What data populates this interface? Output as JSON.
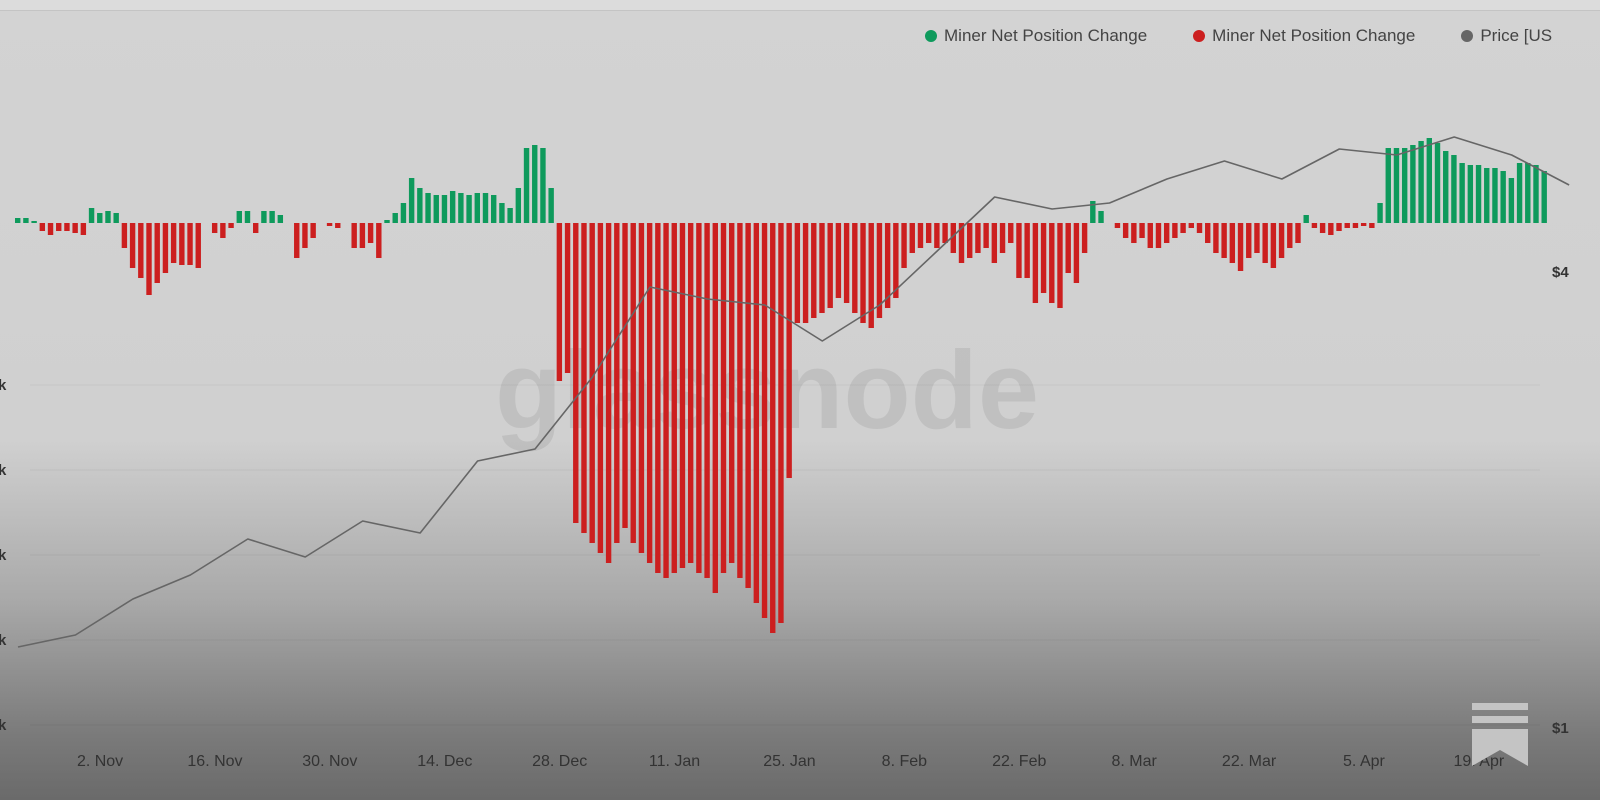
{
  "chart_data": {
    "type": "bar",
    "title": "",
    "watermark": "glassnode",
    "legend": {
      "placement": "top-right",
      "entries": [
        {
          "label": "Miner Net Position Change",
          "color": "#0e9a5c"
        },
        {
          "label": "Miner Net Position Change",
          "color": "#cc1f1f"
        },
        {
          "label": "Price [US",
          "color": "#666666"
        }
      ]
    },
    "x_ticks": [
      "2. Nov",
      "16. Nov",
      "30. Nov",
      "14. Dec",
      "28. Dec",
      "11. Jan",
      "25. Jan",
      "8. Feb",
      "22. Feb",
      "8. Mar",
      "22. Mar",
      "5. Apr",
      "19. Apr"
    ],
    "left_axis_ticks": [
      "k",
      "k",
      "k",
      "k",
      "k"
    ],
    "right_axis_ticks": [
      "$4",
      "$1"
    ],
    "grid": true,
    "bar_ylim": [
      -420,
      100
    ],
    "series": [
      {
        "kind": "bars",
        "positive_color": "#0e9a5c",
        "negative_color": "#cc1f1f",
        "values": [
          5,
          5,
          2,
          -8,
          -12,
          -8,
          -8,
          -10,
          -12,
          15,
          10,
          12,
          10,
          -25,
          -45,
          -55,
          -72,
          -60,
          -50,
          -40,
          -42,
          -42,
          -45,
          0,
          -10,
          -15,
          -5,
          12,
          12,
          -10,
          12,
          12,
          8,
          0,
          -35,
          -25,
          -15,
          0,
          -3,
          -5,
          0,
          -25,
          -25,
          -20,
          -35,
          3,
          10,
          20,
          45,
          35,
          30,
          28,
          28,
          32,
          30,
          28,
          30,
          30,
          28,
          20,
          15,
          35,
          75,
          78,
          75,
          35,
          -158,
          -150,
          -300,
          -310,
          -320,
          -330,
          -340,
          -320,
          -305,
          -320,
          -330,
          -340,
          -350,
          -355,
          -350,
          -345,
          -340,
          -350,
          -355,
          -370,
          -350,
          -340,
          -355,
          -365,
          -380,
          -395,
          -410,
          -400,
          -255,
          -100,
          -100,
          -95,
          -90,
          -85,
          -75,
          -80,
          -90,
          -100,
          -105,
          -95,
          -85,
          -75,
          -45,
          -30,
          -25,
          -20,
          -25,
          -20,
          -30,
          -40,
          -35,
          -30,
          -25,
          -40,
          -30,
          -20,
          -55,
          -55,
          -80,
          -70,
          -80,
          -85,
          -50,
          -60,
          -30,
          22,
          12,
          0,
          -5,
          -15,
          -20,
          -15,
          -25,
          -25,
          -20,
          -15,
          -10,
          -5,
          -10,
          -20,
          -30,
          -35,
          -40,
          -48,
          -35,
          -30,
          -40,
          -45,
          -35,
          -25,
          -20,
          8,
          -5,
          -10,
          -12,
          -8,
          -5,
          -5,
          -3,
          -5,
          20,
          75,
          75,
          75,
          78,
          82,
          85,
          80,
          72,
          68,
          60,
          58,
          58,
          55,
          55,
          52,
          45,
          60,
          60,
          58,
          52
        ]
      },
      {
        "kind": "line",
        "color": "#666666",
        "sampling": "weekly",
        "values": [
          13,
          15,
          21,
          25,
          31,
          28,
          34,
          32,
          44,
          46,
          58,
          73,
          71,
          70,
          64,
          70,
          79,
          88,
          86,
          87,
          91,
          94,
          91,
          96,
          95,
          98,
          95,
          90
        ]
      }
    ]
  }
}
